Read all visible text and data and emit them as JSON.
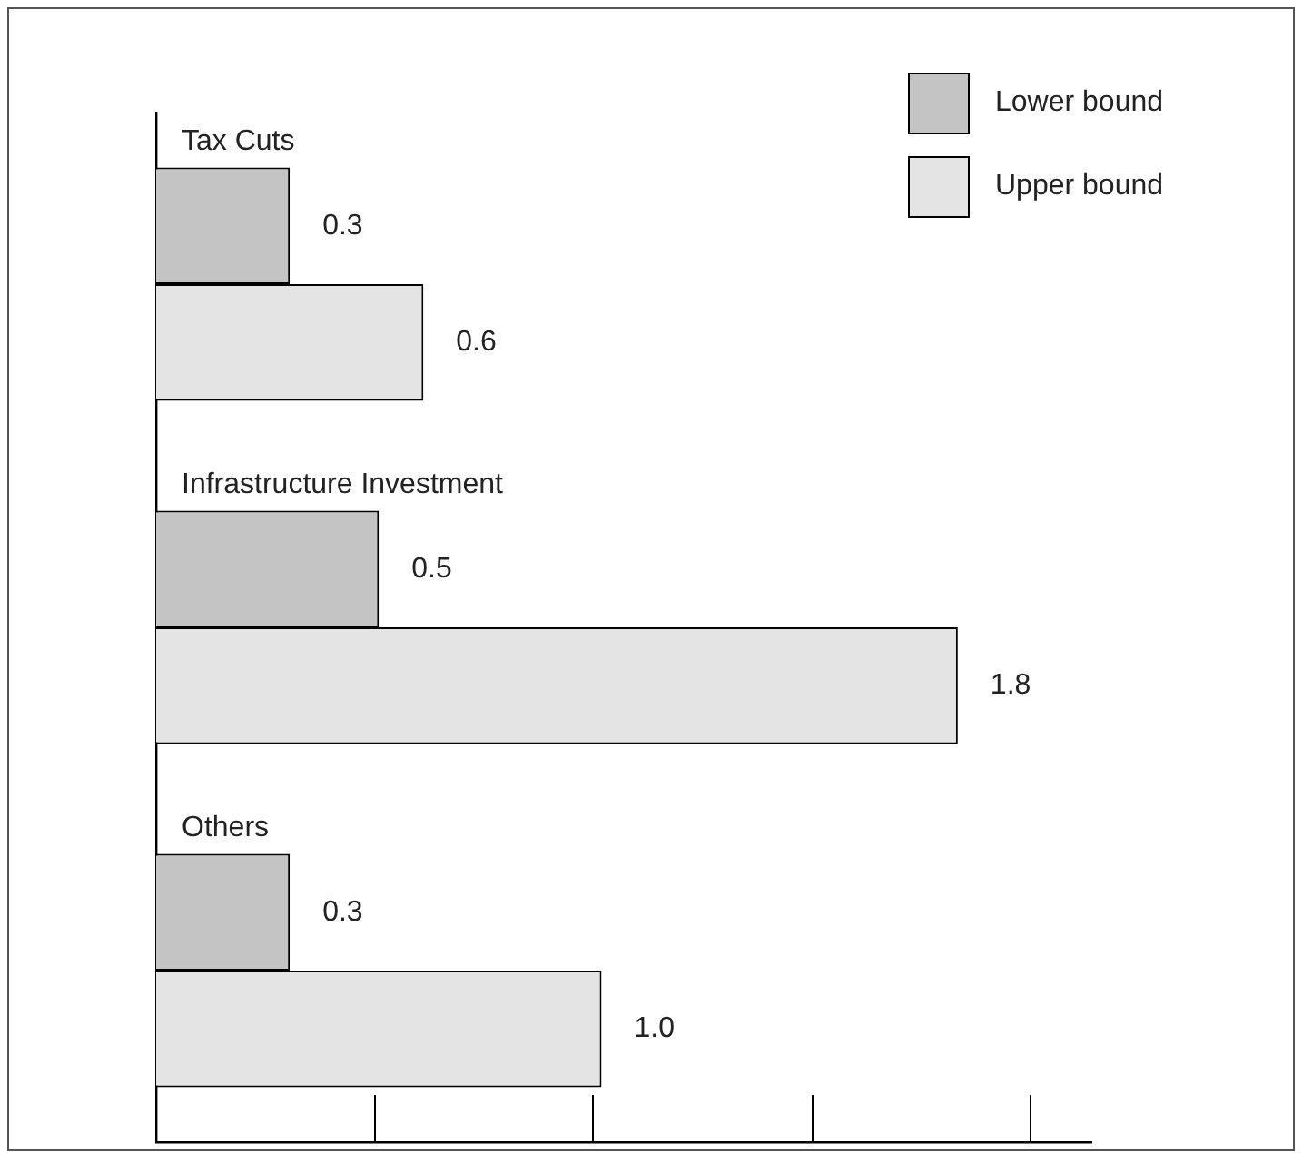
{
  "chart_data": {
    "type": "bar",
    "orientation": "horizontal",
    "categories": [
      "Tax Cuts",
      "Infrastructure Investment",
      "Others"
    ],
    "series": [
      {
        "name": "Lower bound",
        "color": "#c4c4c4",
        "values": [
          0.3,
          0.5,
          0.3
        ],
        "value_labels": [
          "0.3",
          "0.5",
          "0.3"
        ]
      },
      {
        "name": "Upper bound",
        "color": "#e4e4e4",
        "values": [
          0.6,
          1.8,
          1.0
        ],
        "value_labels": [
          "0.6",
          "1.8",
          "1.0"
        ]
      }
    ],
    "xlim": [
      0,
      2.1
    ],
    "grid": false,
    "legend": "top right"
  }
}
